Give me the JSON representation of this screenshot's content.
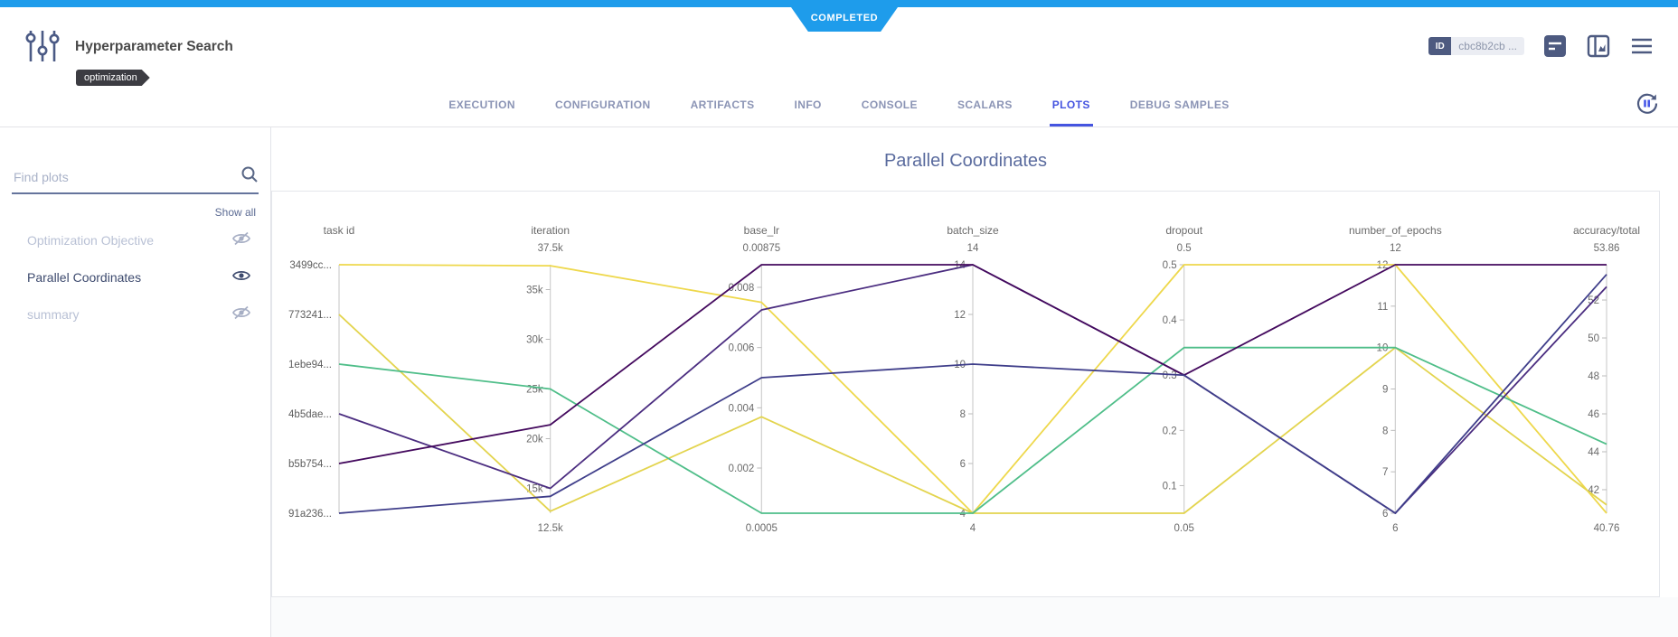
{
  "status": "COMPLETED",
  "header": {
    "title": "Hyperparameter Search",
    "tag": "optimization",
    "id_label": "ID",
    "id_value": "cbc8b2cb ..."
  },
  "tabs": {
    "items": [
      "EXECUTION",
      "CONFIGURATION",
      "ARTIFACTS",
      "INFO",
      "CONSOLE",
      "SCALARS",
      "PLOTS",
      "DEBUG SAMPLES"
    ],
    "active": "PLOTS"
  },
  "sidebar": {
    "search_placeholder": "Find plots",
    "show_all": "Show all",
    "items": [
      {
        "label": "Optimization Objective",
        "visible": false
      },
      {
        "label": "Parallel Coordinates",
        "visible": true
      },
      {
        "label": "summary",
        "visible": false
      }
    ]
  },
  "chart_data": {
    "type": "parallel_coordinates",
    "title": "Parallel Coordinates",
    "legend": "none",
    "axes": [
      {
        "name": "task id",
        "type": "category",
        "categories": [
          "3499cc...",
          "773241...",
          "1ebe94...",
          "4b5dae...",
          "b5b754...",
          "91a236..."
        ]
      },
      {
        "name": "iteration",
        "type": "linear",
        "min": 12500,
        "max": 37500,
        "max_label": "37.5k",
        "min_label": "12.5k",
        "ticks": [
          {
            "v": 35000,
            "label": "35k"
          },
          {
            "v": 30000,
            "label": "30k"
          },
          {
            "v": 25000,
            "label": "25k"
          },
          {
            "v": 20000,
            "label": "20k"
          },
          {
            "v": 15000,
            "label": "15k"
          }
        ]
      },
      {
        "name": "base_lr",
        "type": "linear",
        "min": 0.0005,
        "max": 0.00875,
        "max_label": "0.00875",
        "min_label": "0.0005",
        "ticks": [
          {
            "v": 0.008,
            "label": "0.008"
          },
          {
            "v": 0.006,
            "label": "0.006"
          },
          {
            "v": 0.004,
            "label": "0.004"
          },
          {
            "v": 0.002,
            "label": "0.002"
          }
        ]
      },
      {
        "name": "batch_size",
        "type": "linear",
        "min": 4,
        "max": 14,
        "max_label": "14",
        "min_label": "4",
        "ticks": [
          {
            "v": 14,
            "label": "14"
          },
          {
            "v": 12,
            "label": "12"
          },
          {
            "v": 10,
            "label": "10"
          },
          {
            "v": 8,
            "label": "8"
          },
          {
            "v": 6,
            "label": "6"
          },
          {
            "v": 4,
            "label": "4"
          }
        ]
      },
      {
        "name": "dropout",
        "type": "linear",
        "min": 0.05,
        "max": 0.5,
        "max_label": "0.5",
        "min_label": "0.05",
        "ticks": [
          {
            "v": 0.5,
            "label": "0.5"
          },
          {
            "v": 0.4,
            "label": "0.4"
          },
          {
            "v": 0.3,
            "label": "0.3"
          },
          {
            "v": 0.2,
            "label": "0.2"
          },
          {
            "v": 0.1,
            "label": "0.1"
          }
        ]
      },
      {
        "name": "number_of_epochs",
        "type": "linear",
        "min": 6,
        "max": 12,
        "max_label": "12",
        "min_label": "6",
        "ticks": [
          {
            "v": 12,
            "label": "12"
          },
          {
            "v": 11,
            "label": "11"
          },
          {
            "v": 10,
            "label": "10"
          },
          {
            "v": 9,
            "label": "9"
          },
          {
            "v": 8,
            "label": "8"
          },
          {
            "v": 7,
            "label": "7"
          },
          {
            "v": 6,
            "label": "6"
          }
        ]
      },
      {
        "name": "accuracy/total",
        "type": "linear",
        "min": 40.76,
        "max": 53.86,
        "max_label": "53.86",
        "min_label": "40.76",
        "ticks": [
          {
            "v": 52,
            "label": "52"
          },
          {
            "v": 50,
            "label": "50"
          },
          {
            "v": 48,
            "label": "48"
          },
          {
            "v": 46,
            "label": "46"
          },
          {
            "v": 44,
            "label": "44"
          },
          {
            "v": 42,
            "label": "42"
          }
        ]
      }
    ],
    "series": [
      {
        "task": "3499cc...",
        "color": "#eed84c",
        "values": [
          0,
          37400,
          0.0075,
          4,
          0.5,
          12,
          40.76
        ]
      },
      {
        "task": "773241...",
        "color": "#e3d44e",
        "values": [
          1,
          12700,
          0.0037,
          4,
          0.05,
          10,
          41.2
        ]
      },
      {
        "task": "1ebe94...",
        "color": "#4fbe89",
        "values": [
          2,
          25000,
          0.0005,
          4,
          0.35,
          10,
          44.4
        ]
      },
      {
        "task": "4b5dae...",
        "color": "#4b2d80",
        "values": [
          3,
          15000,
          0.00725,
          14,
          0.3,
          6,
          52.7
        ]
      },
      {
        "task": "b5b754...",
        "color": "#440a5e",
        "values": [
          4,
          21400,
          0.00875,
          14,
          0.3,
          12,
          53.86
        ]
      },
      {
        "task": "91a236...",
        "color": "#3f3e8a",
        "values": [
          5,
          14200,
          0.005,
          10,
          0.3,
          6,
          53.35
        ]
      }
    ]
  }
}
